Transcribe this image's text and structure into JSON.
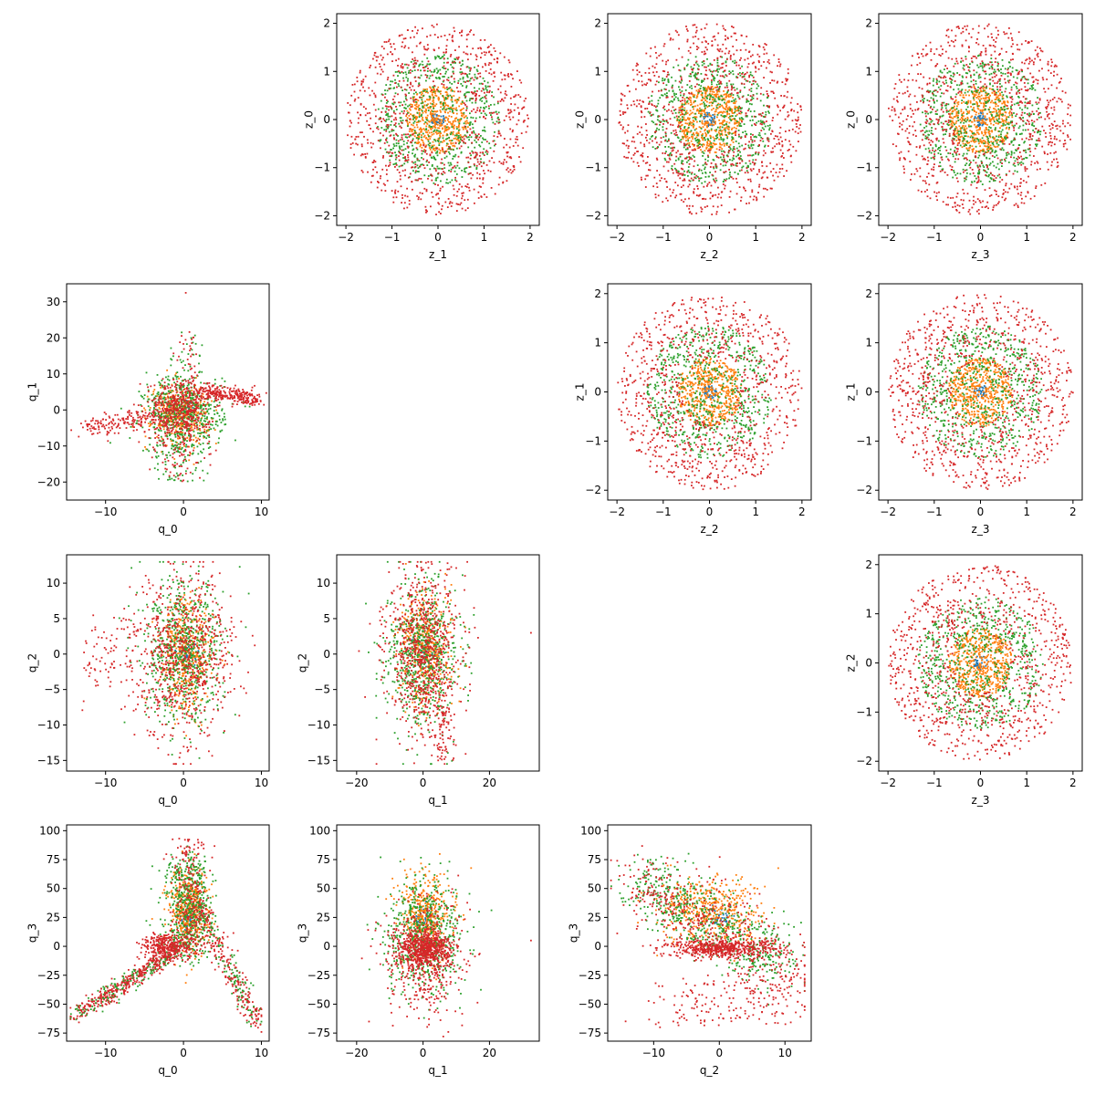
{
  "colors": {
    "inner": "#1f77b4",
    "mid": "#ff7f0e",
    "outer": "#2ca02c",
    "edge": "#d62728"
  },
  "chart_data": [
    {
      "id": "z1_z0",
      "type": "scatter",
      "pattern": "disc",
      "xlabel": "z_1",
      "ylabel": "z_0",
      "xlim": [
        -2.2,
        2.2
      ],
      "ylim": [
        -2.2,
        2.2
      ],
      "xticks": [
        -2,
        -1,
        0,
        1,
        2
      ],
      "yticks": [
        -2,
        -1,
        0,
        1,
        2
      ],
      "rings": [
        {
          "color": "#1f77b4",
          "rmin": 0,
          "rmax": 0.15
        },
        {
          "color": "#ff7f0e",
          "rmin": 0,
          "rmax": 0.7
        },
        {
          "color": "#2ca02c",
          "rmin": 0.2,
          "rmax": 1.35
        },
        {
          "color": "#d62728",
          "rmin": 0.6,
          "rmax": 2.0
        }
      ]
    },
    {
      "id": "z2_z0",
      "type": "scatter",
      "pattern": "disc",
      "xlabel": "z_2",
      "ylabel": "z_0",
      "xlim": [
        -2.2,
        2.2
      ],
      "ylim": [
        -2.2,
        2.2
      ],
      "xticks": [
        -2,
        -1,
        0,
        1,
        2
      ],
      "yticks": [
        -2,
        -1,
        0,
        1,
        2
      ],
      "rings": [
        {
          "color": "#1f77b4",
          "rmin": 0,
          "rmax": 0.15
        },
        {
          "color": "#ff7f0e",
          "rmin": 0,
          "rmax": 0.7
        },
        {
          "color": "#2ca02c",
          "rmin": 0.2,
          "rmax": 1.35
        },
        {
          "color": "#d62728",
          "rmin": 0.6,
          "rmax": 2.0
        }
      ]
    },
    {
      "id": "z3_z0",
      "type": "scatter",
      "pattern": "disc",
      "xlabel": "z_3",
      "ylabel": "z_0",
      "xlim": [
        -2.2,
        2.2
      ],
      "ylim": [
        -2.2,
        2.2
      ],
      "xticks": [
        -2,
        -1,
        0,
        1,
        2
      ],
      "yticks": [
        -2,
        -1,
        0,
        1,
        2
      ],
      "rings": [
        {
          "color": "#1f77b4",
          "rmin": 0,
          "rmax": 0.15
        },
        {
          "color": "#ff7f0e",
          "rmin": 0,
          "rmax": 0.7
        },
        {
          "color": "#2ca02c",
          "rmin": 0.2,
          "rmax": 1.35
        },
        {
          "color": "#d62728",
          "rmin": 0.6,
          "rmax": 2.0
        }
      ]
    },
    {
      "id": "q0_q1",
      "type": "scatter",
      "pattern": "q0q1",
      "xlabel": "q_0",
      "ylabel": "q_1",
      "xlim": [
        -15,
        11
      ],
      "ylim": [
        -25,
        35
      ],
      "xticks": [
        -10,
        0,
        10
      ],
      "yticks": [
        -20,
        -10,
        0,
        10,
        20,
        30
      ]
    },
    {
      "id": "z2_z1",
      "type": "scatter",
      "pattern": "disc",
      "xlabel": "z_2",
      "ylabel": "z_1",
      "xlim": [
        -2.2,
        2.2
      ],
      "ylim": [
        -2.2,
        2.2
      ],
      "xticks": [
        -2,
        -1,
        0,
        1,
        2
      ],
      "yticks": [
        -2,
        -1,
        0,
        1,
        2
      ],
      "rings": [
        {
          "color": "#1f77b4",
          "rmin": 0,
          "rmax": 0.15
        },
        {
          "color": "#ff7f0e",
          "rmin": 0,
          "rmax": 0.7
        },
        {
          "color": "#2ca02c",
          "rmin": 0.2,
          "rmax": 1.35
        },
        {
          "color": "#d62728",
          "rmin": 0.6,
          "rmax": 2.0
        }
      ]
    },
    {
      "id": "z3_z1",
      "type": "scatter",
      "pattern": "disc",
      "xlabel": "z_3",
      "ylabel": "z_1",
      "xlim": [
        -2.2,
        2.2
      ],
      "ylim": [
        -2.2,
        2.2
      ],
      "xticks": [
        -2,
        -1,
        0,
        1,
        2
      ],
      "yticks": [
        -2,
        -1,
        0,
        1,
        2
      ],
      "rings": [
        {
          "color": "#1f77b4",
          "rmin": 0,
          "rmax": 0.15
        },
        {
          "color": "#ff7f0e",
          "rmin": 0,
          "rmax": 0.7
        },
        {
          "color": "#2ca02c",
          "rmin": 0.2,
          "rmax": 1.35
        },
        {
          "color": "#d62728",
          "rmin": 0.6,
          "rmax": 2.0
        }
      ]
    },
    {
      "id": "q0_q2",
      "type": "scatter",
      "pattern": "q0q2",
      "xlabel": "q_0",
      "ylabel": "q_2",
      "xlim": [
        -15,
        11
      ],
      "ylim": [
        -16.5,
        14
      ],
      "xticks": [
        -10,
        0,
        10
      ],
      "yticks": [
        -15,
        -10,
        -5,
        0,
        5,
        10
      ]
    },
    {
      "id": "q1_q2",
      "type": "scatter",
      "pattern": "q1q2",
      "xlabel": "q_1",
      "ylabel": "q_2",
      "xlim": [
        -26,
        35
      ],
      "ylim": [
        -16.5,
        14
      ],
      "xticks": [
        -20,
        0,
        20
      ],
      "yticks": [
        -15,
        -10,
        -5,
        0,
        5,
        10
      ]
    },
    {
      "id": "z3_z2",
      "type": "scatter",
      "pattern": "disc",
      "xlabel": "z_3",
      "ylabel": "z_2",
      "xlim": [
        -2.2,
        2.2
      ],
      "ylim": [
        -2.2,
        2.2
      ],
      "xticks": [
        -2,
        -1,
        0,
        1,
        2
      ],
      "yticks": [
        -2,
        -1,
        0,
        1,
        2
      ],
      "rings": [
        {
          "color": "#1f77b4",
          "rmin": 0,
          "rmax": 0.15
        },
        {
          "color": "#ff7f0e",
          "rmin": 0,
          "rmax": 0.7
        },
        {
          "color": "#2ca02c",
          "rmin": 0.2,
          "rmax": 1.35
        },
        {
          "color": "#d62728",
          "rmin": 0.6,
          "rmax": 2.0
        }
      ]
    },
    {
      "id": "q0_q3",
      "type": "scatter",
      "pattern": "q0q3",
      "xlabel": "q_0",
      "ylabel": "q_3",
      "xlim": [
        -15,
        11
      ],
      "ylim": [
        -82,
        105
      ],
      "xticks": [
        -10,
        0,
        10
      ],
      "yticks": [
        -75,
        -50,
        -25,
        0,
        25,
        50,
        75,
        100
      ]
    },
    {
      "id": "q1_q3",
      "type": "scatter",
      "pattern": "q1q3",
      "xlabel": "q_1",
      "ylabel": "q_3",
      "xlim": [
        -26,
        35
      ],
      "ylim": [
        -82,
        105
      ],
      "xticks": [
        -20,
        0,
        20
      ],
      "yticks": [
        -75,
        -50,
        -25,
        0,
        25,
        50,
        75,
        100
      ]
    },
    {
      "id": "q2_q3",
      "type": "scatter",
      "pattern": "q2q3",
      "xlabel": "q_2",
      "ylabel": "q_3",
      "xlim": [
        -17,
        14
      ],
      "ylim": [
        -82,
        105
      ],
      "xticks": [
        -10,
        0,
        10
      ],
      "yticks": [
        -75,
        -50,
        -25,
        0,
        25,
        50,
        75,
        100
      ]
    }
  ]
}
